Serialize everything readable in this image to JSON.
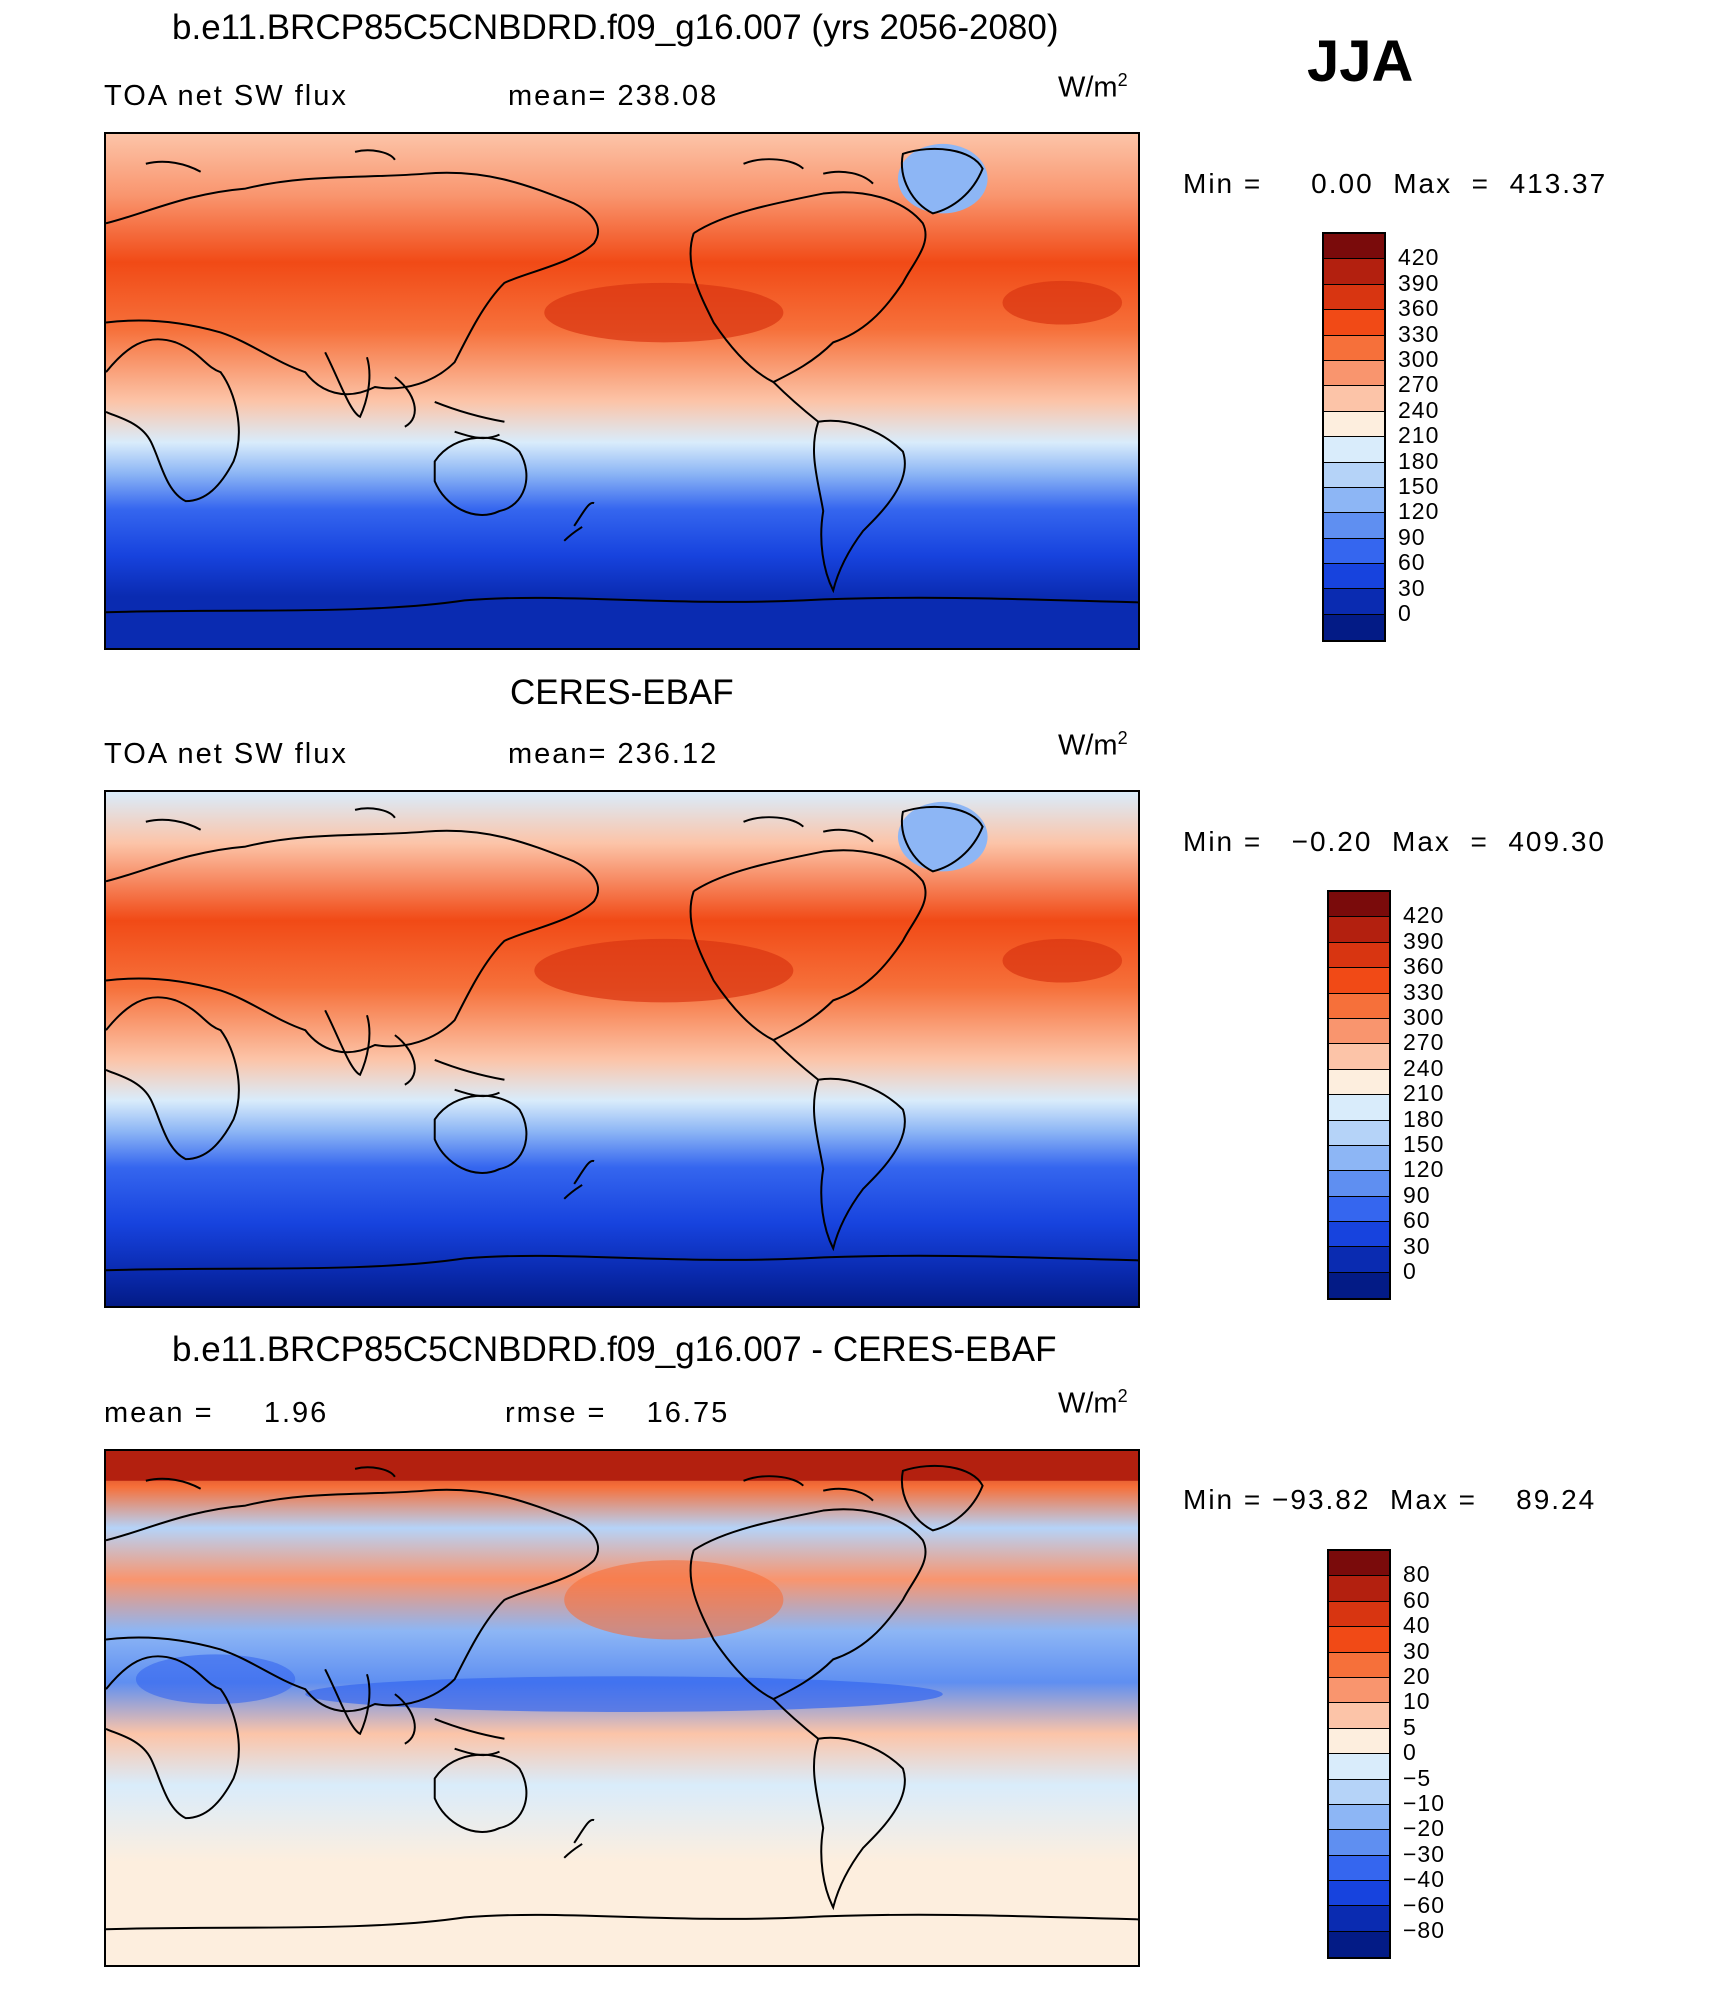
{
  "season": "JJA",
  "panels": [
    {
      "title": "b.e11.BRCP85C5CNBDRD.f09_g16.007 (yrs 2056-2080)",
      "left_label": "TOA net SW flux",
      "center_label": "mean= 238.08",
      "units": "W/m",
      "units_sup": "2",
      "minmax": "Min =     0.00  Max  =  413.37"
    },
    {
      "title": "CERES-EBAF",
      "left_label": "TOA net SW flux",
      "center_label": "mean= 236.12",
      "units": "W/m",
      "units_sup": "2",
      "minmax": "Min =   −0.20  Max  =  409.30"
    },
    {
      "title": "b.e11.BRCP85C5CNBDRD.f09_g16.007 - CERES-EBAF",
      "left_label": "mean =     1.96",
      "center_label": "rmse =    16.75",
      "units": "W/m",
      "units_sup": "2",
      "minmax": "Min = −93.82  Max =    89.24"
    }
  ],
  "colorbars": {
    "flux_ticks": [
      "420",
      "390",
      "360",
      "330",
      "300",
      "270",
      "240",
      "210",
      "180",
      "150",
      "120",
      "90",
      "60",
      "30",
      "0"
    ],
    "diff_ticks": [
      "80",
      "60",
      "40",
      "30",
      "20",
      "10",
      "5",
      "0",
      "−5",
      "−10",
      "−20",
      "−30",
      "−40",
      "−60",
      "−80"
    ],
    "colors": [
      "#7a0b0b",
      "#b3200f",
      "#d83511",
      "#f14a16",
      "#f6703a",
      "#f9956e",
      "#fcc4a8",
      "#fdeede",
      "#d9ecfb",
      "#b5d3f8",
      "#8db6f5",
      "#5f8ff1",
      "#3566ef",
      "#1743de",
      "#0a2bb1",
      "#031b86"
    ]
  },
  "chart_data": [
    {
      "type": "heatmap",
      "title": "b.e11.BRCP85C5CNBDRD.f09_g16.007 (yrs 2056-2080)",
      "variable": "TOA net SW flux",
      "units": "W/m2",
      "season": "JJA",
      "mean": 238.08,
      "min": 0.0,
      "max": 413.37,
      "levels": [
        0,
        30,
        60,
        90,
        120,
        150,
        180,
        210,
        240,
        270,
        300,
        330,
        360,
        390,
        420
      ]
    },
    {
      "type": "heatmap",
      "title": "CERES-EBAF",
      "variable": "TOA net SW flux",
      "units": "W/m2",
      "season": "JJA",
      "mean": 236.12,
      "min": -0.2,
      "max": 409.3,
      "levels": [
        0,
        30,
        60,
        90,
        120,
        150,
        180,
        210,
        240,
        270,
        300,
        330,
        360,
        390,
        420
      ]
    },
    {
      "type": "heatmap",
      "title": "b.e11.BRCP85C5CNBDRD.f09_g16.007 - CERES-EBAF",
      "units": "W/m2",
      "season": "JJA",
      "mean": 1.96,
      "rmse": 16.75,
      "min": -93.82,
      "max": 89.24,
      "levels": [
        -80,
        -60,
        -40,
        -30,
        -20,
        -10,
        -5,
        0,
        5,
        10,
        20,
        30,
        40,
        60,
        80
      ]
    }
  ]
}
